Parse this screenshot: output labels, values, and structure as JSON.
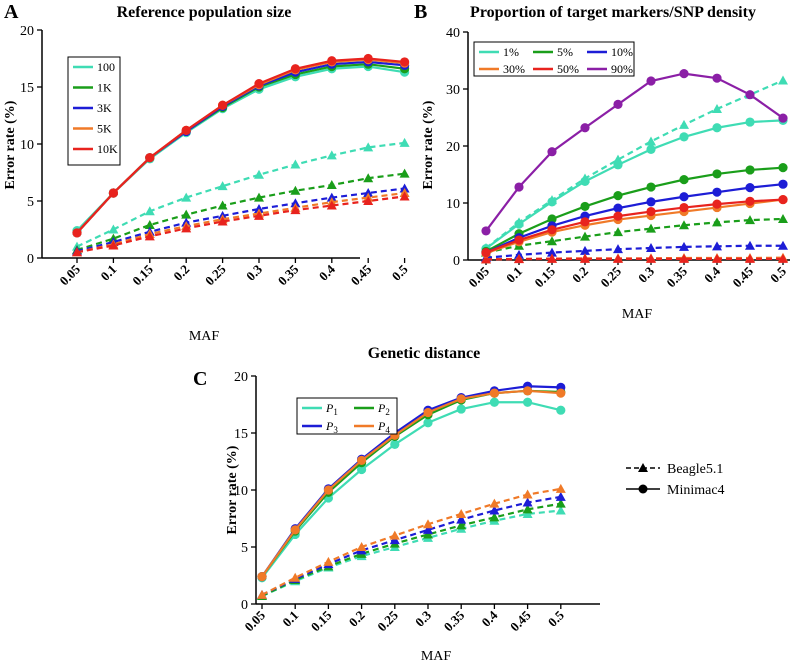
{
  "panels": [
    {
      "letter": "A"
    },
    {
      "letter": "B"
    },
    {
      "letter": "C"
    }
  ],
  "legend_method": {
    "beagle": "Beagle5.1",
    "minimac": "Minimac4"
  },
  "chart_data": [
    {
      "type": "line",
      "title": "Reference population size",
      "xlabel": "MAF",
      "ylabel": "Error rate (%)",
      "categories": [
        "0.05",
        "0.1",
        "0.15",
        "0.2",
        "0.25",
        "0.3",
        "0.35",
        "0.4",
        "0.45",
        "0.5"
      ],
      "ylim": [
        0,
        20
      ],
      "yticks": [
        "0",
        "5",
        "10",
        "15",
        "20"
      ],
      "legend_position": "top-left",
      "series": [
        {
          "name": "100",
          "color": "#3fdcb4",
          "minimac": [
            2.4,
            5.7,
            8.7,
            11.0,
            13.1,
            14.8,
            15.9,
            16.6,
            16.8,
            16.3
          ],
          "beagle": [
            1.0,
            2.5,
            4.1,
            5.3,
            6.3,
            7.3,
            8.2,
            9.0,
            9.7,
            10.1
          ]
        },
        {
          "name": "1K",
          "color": "#1a9e1a",
          "minimac": [
            2.2,
            5.7,
            8.8,
            11.1,
            13.2,
            15.0,
            16.1,
            16.8,
            17.0,
            16.6
          ],
          "beagle": [
            0.7,
            1.7,
            2.9,
            3.8,
            4.6,
            5.3,
            5.9,
            6.4,
            7.0,
            7.4
          ]
        },
        {
          "name": "3K",
          "color": "#1d1dd6",
          "minimac": [
            2.2,
            5.7,
            8.8,
            11.1,
            13.3,
            15.1,
            16.3,
            17.0,
            17.2,
            16.9
          ],
          "beagle": [
            0.6,
            1.4,
            2.3,
            3.1,
            3.7,
            4.3,
            4.8,
            5.3,
            5.7,
            6.1
          ]
        },
        {
          "name": "5K",
          "color": "#f07a28",
          "minimac": [
            2.2,
            5.7,
            8.8,
            11.2,
            13.4,
            15.2,
            16.5,
            17.2,
            17.4,
            17.1
          ],
          "beagle": [
            0.5,
            1.2,
            2.1,
            2.8,
            3.4,
            3.9,
            4.4,
            4.9,
            5.3,
            5.7
          ]
        },
        {
          "name": "10K",
          "color": "#e8231e",
          "minimac": [
            2.2,
            5.7,
            8.8,
            11.2,
            13.4,
            15.3,
            16.6,
            17.3,
            17.5,
            17.2
          ],
          "beagle": [
            0.5,
            1.1,
            1.9,
            2.6,
            3.2,
            3.7,
            4.2,
            4.6,
            5.0,
            5.4
          ]
        }
      ]
    },
    {
      "type": "line",
      "title": "Proportion of target markers/SNP density",
      "xlabel": "MAF",
      "ylabel": "Error rate (%)",
      "categories": [
        "0.05",
        "0.1",
        "0.15",
        "0.2",
        "0.25",
        "0.3",
        "0.35",
        "0.4",
        "0.45",
        "0.5"
      ],
      "ylim": [
        0,
        40
      ],
      "yticks": [
        "0",
        "10",
        "20",
        "30",
        "40"
      ],
      "legend_position": "top-left",
      "series": [
        {
          "name": "1%",
          "color": "#3fdcb4",
          "minimac": [
            2.0,
            6.3,
            10.2,
            13.8,
            16.7,
            19.4,
            21.6,
            23.2,
            24.2,
            24.5
          ],
          "beagle": [
            2.1,
            6.6,
            10.5,
            14.3,
            17.6,
            20.8,
            23.7,
            26.5,
            29.0,
            31.5
          ]
        },
        {
          "name": "5%",
          "color": "#1a9e1a",
          "minimac": [
            1.5,
            4.6,
            7.2,
            9.4,
            11.3,
            12.8,
            14.1,
            15.1,
            15.8,
            16.2
          ],
          "beagle": [
            1.3,
            2.5,
            3.3,
            4.1,
            4.9,
            5.5,
            6.1,
            6.6,
            7.0,
            7.2
          ]
        },
        {
          "name": "10%",
          "color": "#1d1dd6",
          "minimac": [
            1.3,
            3.9,
            6.0,
            7.7,
            9.1,
            10.2,
            11.1,
            11.9,
            12.7,
            13.3
          ],
          "beagle": [
            0.4,
            0.9,
            1.3,
            1.6,
            1.9,
            2.1,
            2.3,
            2.4,
            2.5,
            2.5
          ]
        },
        {
          "name": "30%",
          "color": "#f07a28",
          "minimac": [
            1.2,
            3.2,
            4.9,
            6.1,
            7.1,
            7.8,
            8.5,
            9.2,
            9.9,
            10.6
          ],
          "beagle": [
            0.1,
            0.2,
            0.25,
            0.3,
            0.3,
            0.3,
            0.35,
            0.35,
            0.35,
            0.4
          ]
        },
        {
          "name": "50%",
          "color": "#e8231e",
          "minimac": [
            1.3,
            3.5,
            5.3,
            6.7,
            7.7,
            8.5,
            9.2,
            9.8,
            10.3,
            10.6
          ],
          "beagle": [
            0.1,
            0.15,
            0.2,
            0.2,
            0.2,
            0.2,
            0.2,
            0.2,
            0.2,
            0.2
          ]
        },
        {
          "name": "90%",
          "color": "#8b1fa6",
          "minimac": [
            5.1,
            12.8,
            19.0,
            23.2,
            27.3,
            31.4,
            32.7,
            31.9,
            29.0,
            24.9
          ],
          "beagle": null
        }
      ]
    },
    {
      "type": "line",
      "title": "Genetic distance",
      "xlabel": "MAF",
      "ylabel": "Error rate (%)",
      "categories": [
        "0.05",
        "0.1",
        "0.15",
        "0.2",
        "0.25",
        "0.3",
        "0.35",
        "0.4",
        "0.45",
        "0.5"
      ],
      "ylim": [
        0,
        20
      ],
      "yticks": [
        "0",
        "5",
        "10",
        "15",
        "20"
      ],
      "legend_position": "top-left",
      "series": [
        {
          "name": "P1",
          "label": "P",
          "sub": "1",
          "color": "#3fdcb4",
          "minimac": [
            2.3,
            6.1,
            9.3,
            11.8,
            14.0,
            15.9,
            17.1,
            17.7,
            17.7,
            17.0
          ],
          "beagle": [
            0.7,
            2.0,
            3.2,
            4.2,
            5.0,
            5.8,
            6.6,
            7.3,
            7.9,
            8.2
          ]
        },
        {
          "name": "P2",
          "label": "P",
          "sub": "2",
          "color": "#1a9e1a",
          "minimac": [
            2.4,
            6.4,
            9.8,
            12.4,
            14.7,
            16.6,
            17.9,
            18.5,
            18.7,
            18.6
          ],
          "beagle": [
            0.7,
            2.1,
            3.3,
            4.4,
            5.3,
            6.1,
            6.9,
            7.6,
            8.3,
            8.8
          ]
        },
        {
          "name": "P3",
          "label": "P",
          "sub": "3",
          "color": "#1d1dd6",
          "minimac": [
            2.4,
            6.6,
            10.1,
            12.7,
            15.0,
            17.0,
            18.1,
            18.7,
            19.1,
            19.0
          ],
          "beagle": [
            0.8,
            2.2,
            3.5,
            4.7,
            5.6,
            6.5,
            7.4,
            8.2,
            8.9,
            9.4
          ]
        },
        {
          "name": "P4",
          "label": "P",
          "sub": "4",
          "color": "#f07a28",
          "minimac": [
            2.4,
            6.5,
            10.0,
            12.6,
            14.8,
            16.8,
            18.0,
            18.5,
            18.7,
            18.5
          ],
          "beagle": [
            0.8,
            2.3,
            3.7,
            5.0,
            6.0,
            7.0,
            7.9,
            8.8,
            9.6,
            10.1
          ]
        }
      ]
    }
  ]
}
